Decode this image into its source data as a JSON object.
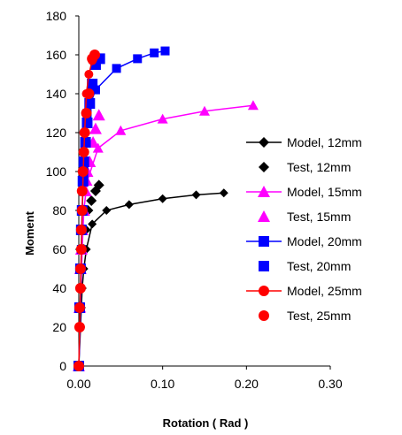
{
  "chart_data": {
    "type": "scatter",
    "title": "",
    "xlabel": "Rotation ( Rad )",
    "ylabel": "Moment",
    "xlim": [
      0,
      0.3
    ],
    "ylim": [
      0,
      180
    ],
    "xticks": [
      "0.00",
      "0.10",
      "0.20",
      "0.30"
    ],
    "xtick_values": [
      0,
      0.1,
      0.2,
      0.3
    ],
    "yticks": [
      "0",
      "20",
      "40",
      "60",
      "80",
      "100",
      "120",
      "140",
      "160",
      "180"
    ],
    "ytick_values": [
      0,
      20,
      40,
      60,
      80,
      100,
      120,
      140,
      160,
      180
    ],
    "grid": false,
    "legend_position": "right",
    "series": [
      {
        "name": "Model, 12mm",
        "kind": "line",
        "marker": "diamond",
        "color": "#000000",
        "x": [
          0,
          0.002,
          0.004,
          0.006,
          0.009,
          0.016,
          0.033,
          0.06,
          0.1,
          0.14,
          0.173
        ],
        "y": [
          0,
          20,
          40,
          50,
          60,
          73,
          80,
          83,
          86,
          88,
          89
        ]
      },
      {
        "name": "Test, 12mm",
        "kind": "points",
        "marker": "diamond",
        "color": "#000000",
        "x": [
          0,
          0.001,
          0.002,
          0.003,
          0.004,
          0.006,
          0.008,
          0.011,
          0.015,
          0.02,
          0.024
        ],
        "y": [
          0,
          20,
          30,
          40,
          50,
          60,
          70,
          80,
          85,
          90,
          93
        ]
      },
      {
        "name": "Model, 15mm",
        "kind": "line",
        "marker": "triangle",
        "color": "#ff00ff",
        "x": [
          0,
          0.002,
          0.004,
          0.006,
          0.01,
          0.023,
          0.05,
          0.1,
          0.15,
          0.208
        ],
        "y": [
          0,
          30,
          60,
          80,
          95,
          112,
          121,
          127,
          131,
          134
        ]
      },
      {
        "name": "Test, 15mm",
        "kind": "points",
        "marker": "triangle",
        "color": "#ff00ff",
        "x": [
          0,
          0.001,
          0.002,
          0.003,
          0.004,
          0.006,
          0.008,
          0.01,
          0.013,
          0.017,
          0.02,
          0.024
        ],
        "y": [
          0,
          30,
          50,
          60,
          70,
          80,
          90,
          100,
          105,
          115,
          122,
          129
        ]
      },
      {
        "name": "Model, 20mm",
        "kind": "line",
        "marker": "square",
        "color": "#0000ff",
        "x": [
          0,
          0.002,
          0.003,
          0.004,
          0.006,
          0.01,
          0.02,
          0.045,
          0.07,
          0.09,
          0.103
        ],
        "y": [
          0,
          30,
          60,
          80,
          100,
          130,
          142,
          153,
          158,
          161,
          162
        ]
      },
      {
        "name": "Test, 20mm",
        "kind": "points",
        "marker": "square",
        "color": "#0000ff",
        "x": [
          0,
          0.001,
          0.002,
          0.003,
          0.004,
          0.005,
          0.006,
          0.008,
          0.01,
          0.013,
          0.016,
          0.02,
          0.025
        ],
        "y": [
          0,
          30,
          50,
          70,
          80,
          95,
          105,
          115,
          125,
          135,
          145,
          155,
          158
        ]
      },
      {
        "name": "Model, 25mm",
        "kind": "line",
        "marker": "circle",
        "color": "#ff0000",
        "x": [
          0,
          0.001,
          0.002,
          0.003,
          0.004,
          0.006,
          0.009,
          0.012,
          0.016,
          0.02
        ],
        "y": [
          0,
          20,
          40,
          60,
          80,
          110,
          140,
          150,
          157,
          160
        ]
      },
      {
        "name": "Test, 25mm",
        "kind": "points",
        "marker": "circle",
        "color": "#ff0000",
        "x": [
          0,
          0.001,
          0.001,
          0.002,
          0.002,
          0.003,
          0.003,
          0.004,
          0.004,
          0.005,
          0.006,
          0.007,
          0.009,
          0.012,
          0.016,
          0.019
        ],
        "y": [
          0,
          20,
          30,
          40,
          50,
          60,
          70,
          80,
          90,
          100,
          110,
          120,
          130,
          140,
          158,
          160
        ]
      }
    ]
  }
}
